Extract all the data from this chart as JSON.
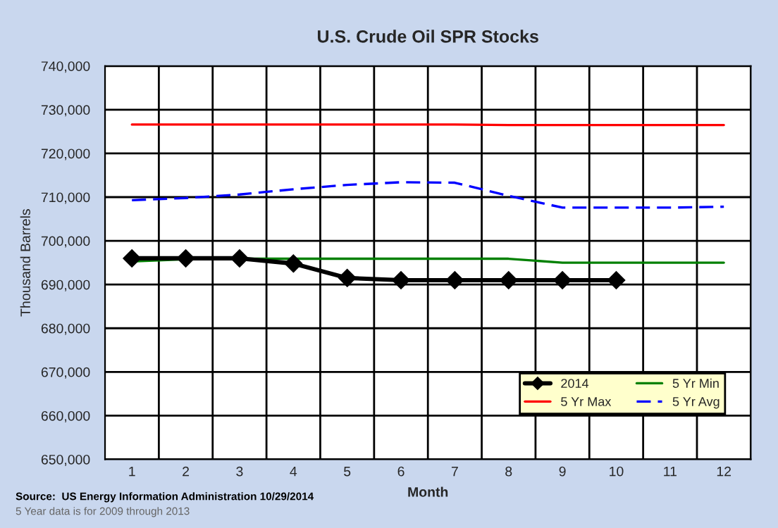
{
  "chart_data": {
    "type": "line",
    "title": "U.S. Crude Oil SPR Stocks",
    "xlabel": "Month",
    "ylabel": "Thousand Barrels",
    "categories": [
      "1",
      "2",
      "3",
      "4",
      "5",
      "6",
      "7",
      "8",
      "9",
      "10",
      "11",
      "12"
    ],
    "series": [
      {
        "name": "2014",
        "color": "#000000",
        "marker": "diamond",
        "values": [
          696000,
          696000,
          696000,
          694800,
          691500,
          691000,
          691000,
          691000,
          691000,
          691000,
          null,
          null
        ]
      },
      {
        "name": "5 Yr Max",
        "color": "#ff0000",
        "values": [
          726600,
          726600,
          726600,
          726600,
          726600,
          726600,
          726600,
          726500,
          726500,
          726500,
          726500,
          726500
        ]
      },
      {
        "name": "5 Yr Min",
        "color": "#008000",
        "values": [
          695300,
          695800,
          695900,
          695900,
          695900,
          695900,
          695900,
          695900,
          695000,
          695000,
          695000,
          695000
        ]
      },
      {
        "name": "5 Yr Avg",
        "color": "#0000ff",
        "line_style": "dashed",
        "values": [
          709300,
          709800,
          710600,
          711800,
          712800,
          713400,
          713300,
          710300,
          707600,
          707600,
          707600,
          707800
        ]
      }
    ],
    "ylim": [
      650000,
      740000
    ],
    "yticks": [
      {
        "value": 650000,
        "label": "650,000"
      },
      {
        "value": 660000,
        "label": "660,000"
      },
      {
        "value": 670000,
        "label": "670,000"
      },
      {
        "value": 680000,
        "label": "680,000"
      },
      {
        "value": 690000,
        "label": "690,000"
      },
      {
        "value": 700000,
        "label": "700,000"
      },
      {
        "value": 710000,
        "label": "710,000"
      },
      {
        "value": 720000,
        "label": "720,000"
      },
      {
        "value": 730000,
        "label": "730,000"
      },
      {
        "value": 740000,
        "label": "740,000"
      }
    ],
    "grid": true,
    "legend": "bottom right",
    "annotations": [
      "Source:  US Energy Information Administration 10/29/2014",
      "5 Year data is for 2009 through 2013"
    ]
  }
}
